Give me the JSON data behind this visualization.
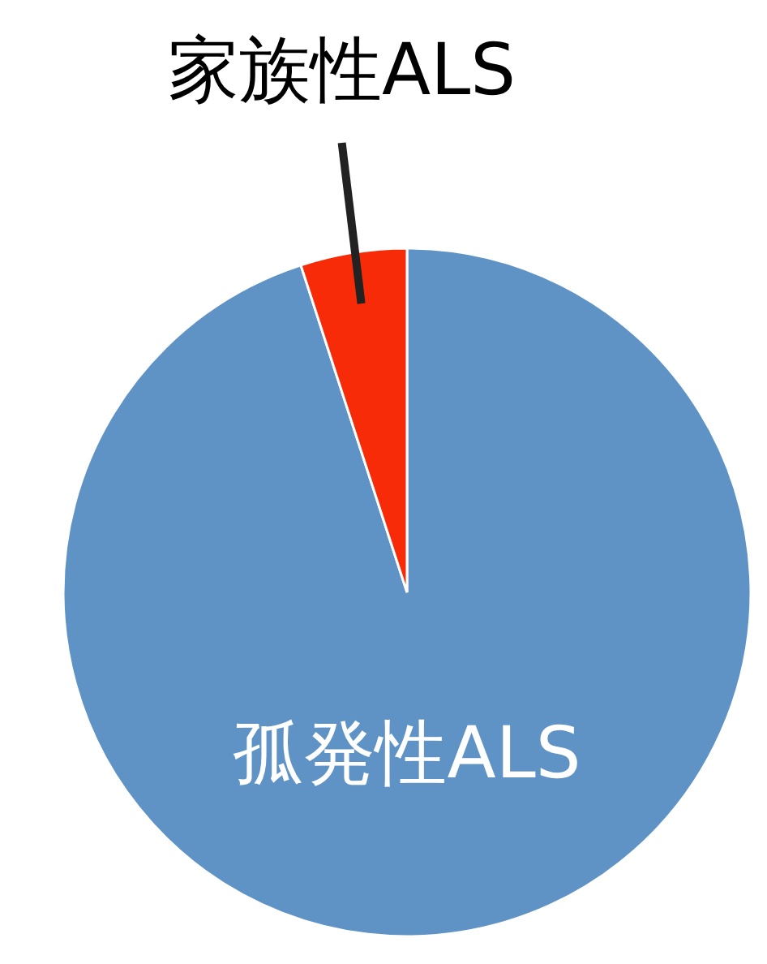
{
  "chart_data": {
    "type": "pie",
    "categories": [
      "孤発性ALS",
      "家族性ALS"
    ],
    "values": [
      95,
      5
    ],
    "colors": [
      "#5f93c6",
      "#f72b08"
    ]
  }
}
